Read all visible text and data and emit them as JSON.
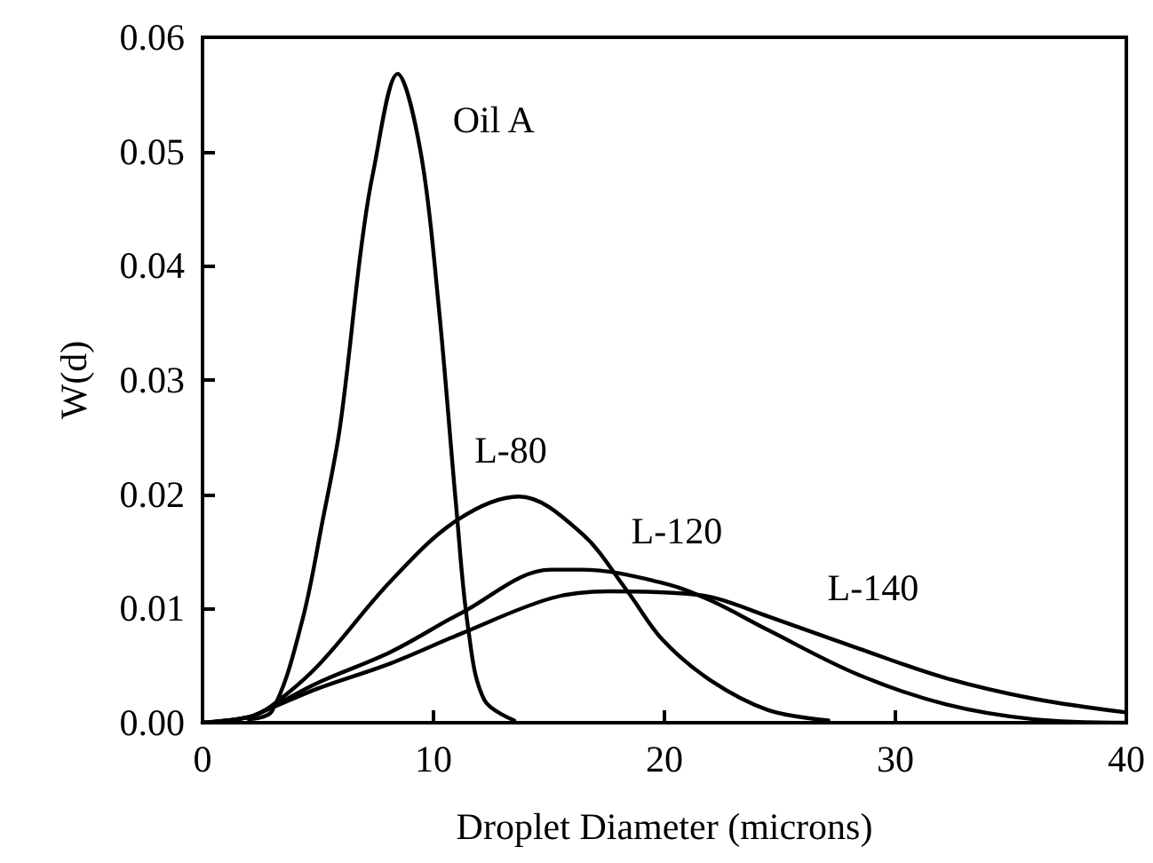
{
  "chart_data": {
    "type": "line",
    "xlabel": "Droplet Diameter (microns)",
    "ylabel": "W(d)",
    "xlim": [
      0,
      40
    ],
    "xticks": [
      0,
      10,
      20,
      30,
      40
    ],
    "ylim": [
      0,
      0.06
    ],
    "yticks": [
      {
        "value": 0,
        "label": "0.00"
      },
      {
        "value": 0.01,
        "label": "0.01"
      },
      {
        "value": 0.02,
        "label": "0.02"
      },
      {
        "value": 0.03,
        "label": "0.03"
      },
      {
        "value": 0.04,
        "label": "0.04"
      },
      {
        "value": 0.05,
        "label": "0.05"
      },
      {
        "value": 0.06,
        "label": "0.06"
      }
    ],
    "grid": false,
    "legend": false,
    "marker": "none",
    "line_style": "solid",
    "series": [
      {
        "name": "Oil A",
        "color": "#000000",
        "x": [
          2,
          3,
          4.3,
          5.2,
          5.96,
          6.86,
          7.37,
          8.45,
          9.44,
          10.2,
          10.98,
          11.5,
          12.2,
          13.5
        ],
        "values": [
          0.0003,
          0.001,
          0.0088,
          0.0177,
          0.026,
          0.0414,
          0.048,
          0.0568,
          0.05,
          0.037,
          0.019,
          0.0083,
          0.002,
          0.0002
        ]
      },
      {
        "name": "L-80",
        "color": "#000000",
        "x": [
          0,
          2,
          3,
          5,
          8.15,
          11,
          13.7,
          16.4,
          18.4,
          19.9,
          22,
          24.5,
          27.1
        ],
        "values": [
          0,
          0.0005,
          0.0015,
          0.005,
          0.0124,
          0.0177,
          0.0198,
          0.0166,
          0.0115,
          0.0073,
          0.0037,
          0.0011,
          0.0002
        ]
      },
      {
        "name": "L-120",
        "color": "#000000",
        "x": [
          0,
          2,
          3,
          5,
          8.15,
          11.2,
          15.1,
          16.4,
          20,
          22,
          24.5,
          28.4,
          32.2,
          36,
          40
        ],
        "values": [
          0,
          0.0005,
          0.0014,
          0.0035,
          0.0062,
          0.0096,
          0.0134,
          0.0134,
          0.0122,
          0.0107,
          0.0081,
          0.0042,
          0.0016,
          0.0003,
          0
        ]
      },
      {
        "name": "L-140",
        "color": "#000000",
        "x": [
          0,
          2,
          3,
          5,
          8.15,
          11.2,
          15.1,
          17.6,
          20,
          22,
          24.5,
          28.4,
          32.2,
          36,
          40
        ],
        "values": [
          0,
          0.0005,
          0.0013,
          0.003,
          0.0052,
          0.0078,
          0.0109,
          0.0115,
          0.0114,
          0.011,
          0.0093,
          0.0065,
          0.0039,
          0.0021,
          0.0009
        ]
      }
    ]
  }
}
